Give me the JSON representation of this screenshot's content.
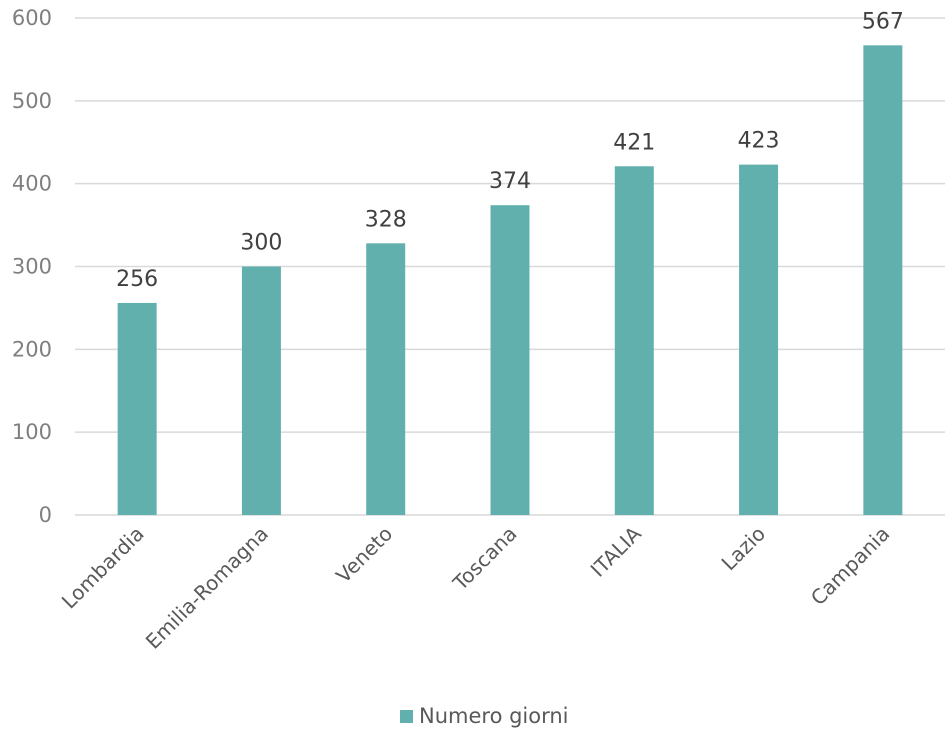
{
  "chart_data": {
    "type": "bar",
    "title": "",
    "xlabel": "",
    "ylabel": "",
    "categories": [
      "Lombardia",
      "Emilia-Romagna",
      "Veneto",
      "Toscana",
      "ITALIA",
      "Lazio",
      "Campania"
    ],
    "series": [
      {
        "name": "Numero giorni",
        "values": [
          256,
          300,
          328,
          374,
          421,
          423,
          567
        ],
        "color": "#62b0ad"
      }
    ],
    "ylim": [
      0,
      600
    ],
    "yticks": [
      0,
      100,
      200,
      300,
      400,
      500,
      600
    ],
    "grid": true,
    "data_labels": true,
    "legend_position": "bottom"
  }
}
